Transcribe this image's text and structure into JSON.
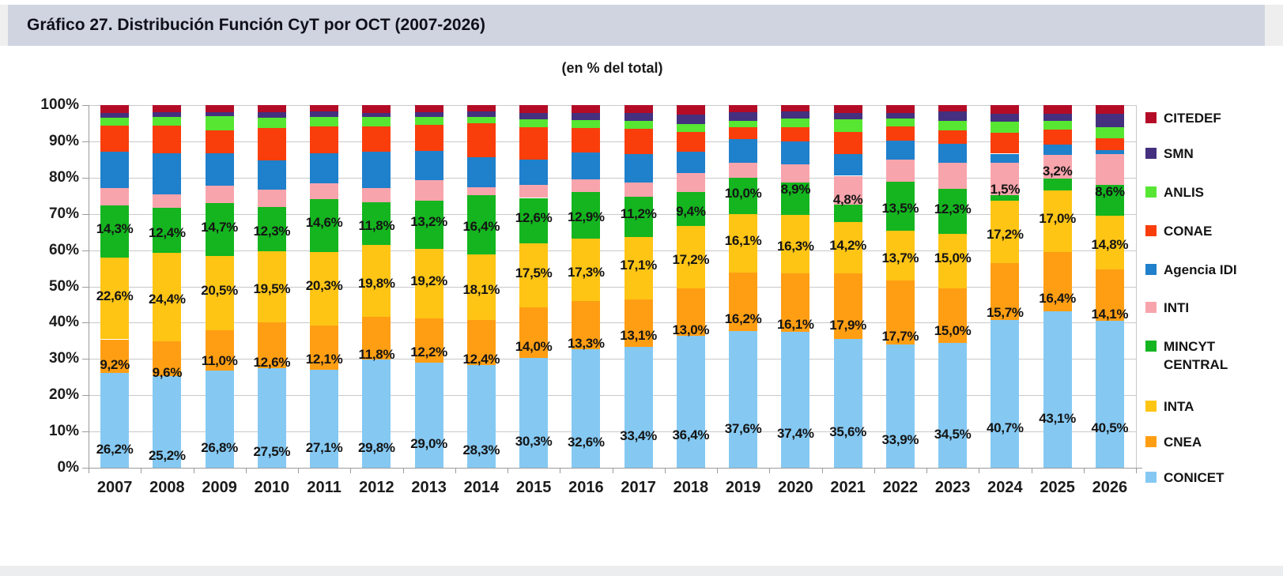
{
  "header": {
    "title": "Gráfico 27. Distribución Función CyT por OCT (2007-2026)",
    "subtitle": "(en % del total)"
  },
  "chart_data": {
    "type": "bar",
    "stacked": true,
    "title": "Gráfico 27. Distribución Función CyT por OCT (2007-2026)",
    "subtitle": "(en % del total)",
    "unit": "% del total",
    "categories": [
      "2007",
      "2008",
      "2009",
      "2010",
      "2011",
      "2012",
      "2013",
      "2014",
      "2015",
      "2016",
      "2017",
      "2018",
      "2019",
      "2020",
      "2021",
      "2022",
      "2023",
      "2024",
      "2025",
      "2026"
    ],
    "ylim": [
      0,
      100
    ],
    "yticks": [
      "0%",
      "10%",
      "20%",
      "30%",
      "40%",
      "50%",
      "60%",
      "70%",
      "80%",
      "90%",
      "100%"
    ],
    "grid": true,
    "legend_position": "right",
    "legend_order_top_to_bottom": [
      "CITEDEF",
      "SMN",
      "ANLIS",
      "CONAE",
      "Agencia IDI",
      "INTI",
      "MINCYT CENTRAL",
      "INTA",
      "CNEA",
      "CONICET"
    ],
    "label_decimal_separator": ",",
    "series": [
      {
        "name": "CONICET",
        "color": "#85C9F3",
        "labels_shown": true,
        "values": [
          26.2,
          25.2,
          26.8,
          27.5,
          27.1,
          29.8,
          29.0,
          28.3,
          30.3,
          32.6,
          33.4,
          36.4,
          37.6,
          37.4,
          35.6,
          33.9,
          34.5,
          40.7,
          43.1,
          40.5
        ]
      },
      {
        "name": "CNEA",
        "color": "#FF9E13",
        "labels_shown": true,
        "values": [
          9.2,
          9.6,
          11.0,
          12.6,
          12.1,
          11.8,
          12.2,
          12.4,
          14.0,
          13.3,
          13.1,
          13.0,
          16.2,
          16.1,
          17.9,
          17.7,
          15.0,
          15.7,
          16.4,
          14.1
        ]
      },
      {
        "name": "INTA",
        "color": "#FFC515",
        "labels_shown": true,
        "values": [
          22.6,
          24.4,
          20.5,
          19.5,
          20.3,
          19.8,
          19.2,
          18.1,
          17.5,
          17.3,
          17.1,
          17.2,
          16.1,
          16.3,
          14.2,
          13.7,
          15.0,
          17.2,
          17.0,
          14.8
        ]
      },
      {
        "name": "MINCYT CENTRAL",
        "color": "#14B51F",
        "labels_shown": true,
        "values": [
          14.3,
          12.4,
          14.7,
          12.3,
          14.6,
          11.8,
          13.2,
          16.4,
          12.6,
          12.9,
          11.2,
          9.4,
          10.0,
          8.9,
          4.8,
          13.5,
          12.3,
          1.5,
          3.2,
          8.6
        ]
      },
      {
        "name": "INTI",
        "color": "#F8A4AC",
        "labels_shown": false,
        "values": [
          4.8,
          3.8,
          4.8,
          4.8,
          4.4,
          3.9,
          5.7,
          2.2,
          3.6,
          3.4,
          3.9,
          5.3,
          4.3,
          5.0,
          8.0,
          6.2,
          7.2,
          9.0,
          6.5,
          8.4
        ]
      },
      {
        "name": "Agencia IDI",
        "color": "#1F80CB",
        "labels_shown": false,
        "values": [
          10.0,
          11.4,
          9.0,
          8.1,
          8.2,
          10.0,
          8.0,
          8.3,
          7.0,
          7.4,
          7.7,
          5.8,
          6.5,
          6.3,
          6.0,
          5.1,
          5.4,
          2.5,
          3.0,
          1.2
        ]
      },
      {
        "name": "CONAE",
        "color": "#F93E0C",
        "labels_shown": false,
        "values": [
          7.2,
          7.6,
          6.3,
          8.8,
          7.4,
          7.0,
          7.2,
          9.2,
          8.8,
          6.8,
          7.0,
          5.5,
          3.2,
          4.0,
          6.2,
          4.0,
          3.7,
          5.8,
          4.0,
          3.2
        ]
      },
      {
        "name": "ANLIS",
        "color": "#57E631",
        "labels_shown": false,
        "values": [
          2.2,
          2.4,
          3.8,
          2.9,
          2.6,
          2.6,
          2.3,
          1.8,
          2.2,
          2.2,
          2.2,
          2.2,
          1.8,
          2.2,
          3.3,
          2.2,
          2.6,
          3.0,
          2.4,
          3.2
        ]
      },
      {
        "name": "SMN",
        "color": "#44307E",
        "labels_shown": false,
        "values": [
          1.3,
          1.2,
          1.1,
          1.5,
          1.5,
          1.1,
          1.2,
          1.5,
          1.8,
          2.0,
          2.2,
          2.6,
          2.3,
          2.0,
          1.8,
          1.5,
          2.5,
          2.3,
          2.0,
          3.6
        ]
      },
      {
        "name": "CITEDEF",
        "color": "#B40C26",
        "labels_shown": false,
        "values": [
          2.2,
          2.0,
          2.0,
          2.0,
          1.8,
          2.2,
          2.0,
          1.8,
          2.2,
          2.1,
          2.2,
          2.6,
          2.0,
          1.8,
          2.2,
          2.2,
          1.8,
          2.3,
          2.4,
          2.4
        ]
      }
    ]
  }
}
